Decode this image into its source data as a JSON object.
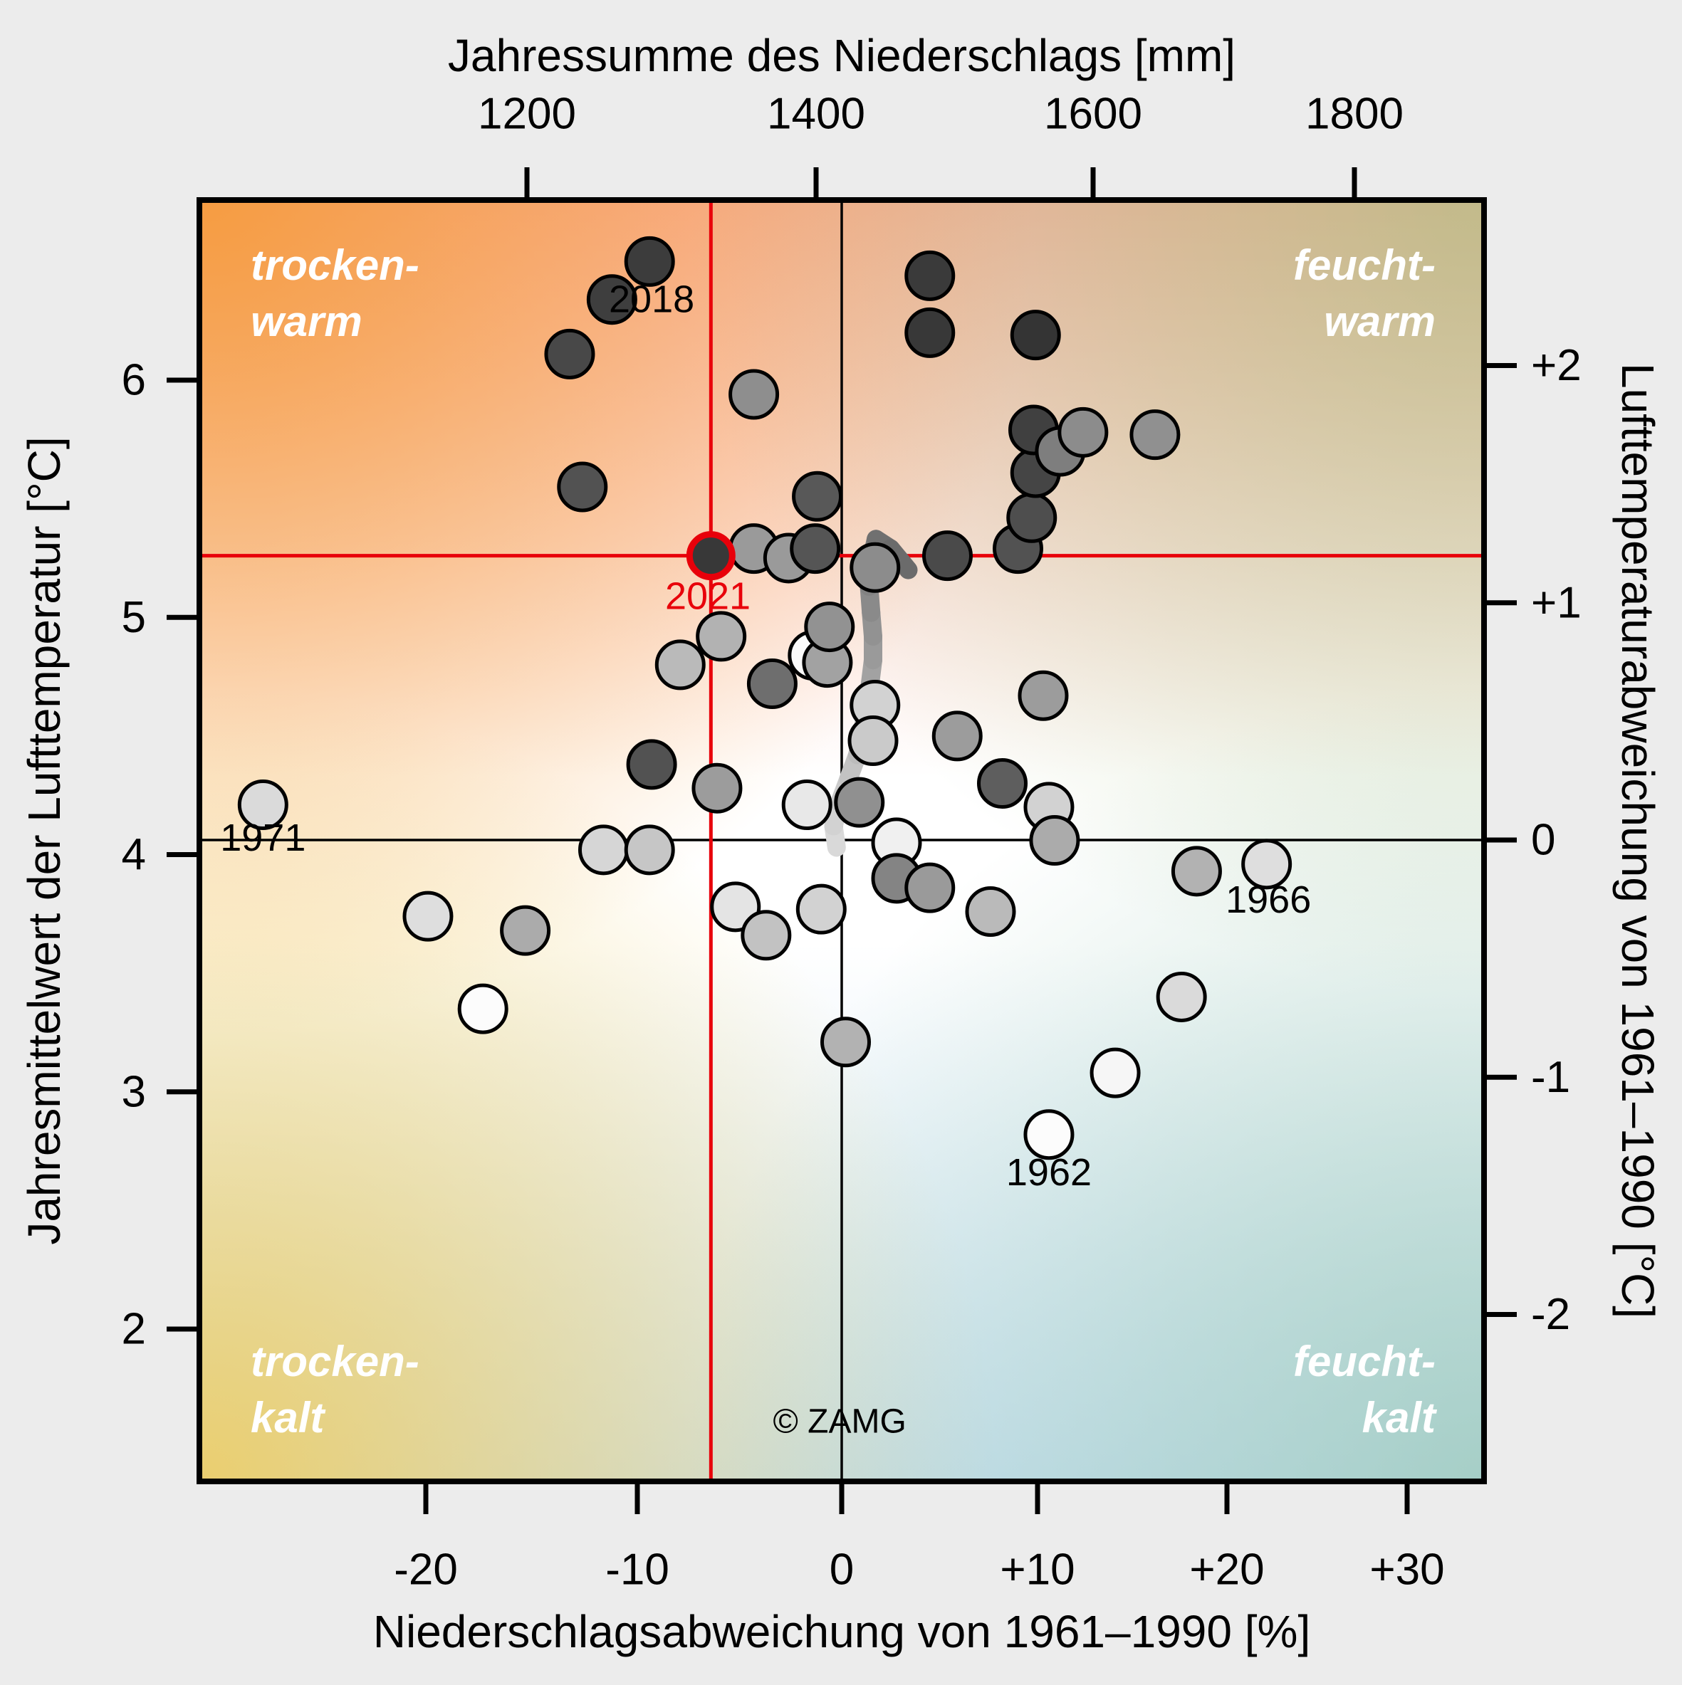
{
  "chart_data": {
    "type": "scatter",
    "axes": {
      "top": {
        "title": "Jahressumme des Niederschlags [mm]",
        "ticks": [
          {
            "value": 1200,
            "label": "1200"
          },
          {
            "value": 1400,
            "label": "1400"
          },
          {
            "value": 1600,
            "label": "1600"
          },
          {
            "value": 1800,
            "label": "1800"
          }
        ]
      },
      "bottom": {
        "title": "Niederschlagsabweichung von 1961–1990 [%]",
        "ticks": [
          {
            "value": -20,
            "label": "-20"
          },
          {
            "value": -10,
            "label": "-10"
          },
          {
            "value": 0,
            "label": "0"
          },
          {
            "value": 10,
            "label": "+10"
          },
          {
            "value": 20,
            "label": "+20"
          },
          {
            "value": 30,
            "label": "+30"
          }
        ]
      },
      "left": {
        "title": "Jahresmittelwert der Lufttemperatur [°C]",
        "ticks": [
          {
            "value": 6,
            "label": "6"
          },
          {
            "value": 5,
            "label": "5"
          },
          {
            "value": 4,
            "label": "4"
          },
          {
            "value": 3,
            "label": "3"
          },
          {
            "value": 2,
            "label": "2"
          }
        ]
      },
      "right": {
        "title": "Lufttemperaturabweichung von 1961–1990 [°C]",
        "ticks": [
          {
            "value": 2,
            "label": "+2"
          },
          {
            "value": 1,
            "label": "+1"
          },
          {
            "value": 0,
            "label": "0"
          },
          {
            "value": -1,
            "label": "-1"
          },
          {
            "value": -2,
            "label": "-2"
          }
        ]
      }
    },
    "xlabel": "Niederschlagsabweichung von 1961–1990 [%]",
    "ylabel": "Jahresmittelwert der Lufttemperatur [°C]",
    "xlim": [
      -31,
      32
    ],
    "ylim": [
      1.55,
      6.75
    ],
    "grid": false,
    "quadrant_labels": {
      "top_left": [
        "trocken-",
        "warm"
      ],
      "top_right": [
        "feucht-",
        "warm"
      ],
      "bottom_left": [
        "trocken-",
        "kalt"
      ],
      "bottom_right": [
        "feucht-",
        "kalt"
      ]
    },
    "highlight": {
      "year": "2021",
      "pct": -6.4,
      "temp": 5.26,
      "line_color": "#e8000a"
    },
    "zero_reference": {
      "pct": 0,
      "temp_at_zero_dev": 4.06,
      "line_color": "#000000"
    },
    "points": [
      {
        "pct": -9.4,
        "temp": 6.5,
        "shade": "#3c3c3c",
        "label": "2018"
      },
      {
        "pct": -11.2,
        "temp": 6.34,
        "shade": "#3e3e3e"
      },
      {
        "pct": -13.2,
        "temp": 6.11,
        "shade": "#484848"
      },
      {
        "pct": -4.3,
        "temp": 5.94,
        "shade": "#8e8e8e"
      },
      {
        "pct": -12.6,
        "temp": 5.55,
        "shade": "#525252"
      },
      {
        "pct": -1.2,
        "temp": 5.51,
        "shade": "#585858"
      },
      {
        "pct": -4.3,
        "temp": 5.29,
        "shade": "#9a9a9a"
      },
      {
        "pct": -2.6,
        "temp": 5.25,
        "shade": "#9a9a9a"
      },
      {
        "pct": -1.3,
        "temp": 5.29,
        "shade": "#555555"
      },
      {
        "pct": 1.7,
        "temp": 5.21,
        "shade": "#8c8c8c"
      },
      {
        "pct": 5.4,
        "temp": 5.26,
        "shade": "#4a4a4a"
      },
      {
        "pct": 9.0,
        "temp": 5.29,
        "shade": "#525252"
      },
      {
        "pct": 9.7,
        "temp": 5.42,
        "shade": "#4e4e4e"
      },
      {
        "pct": 9.9,
        "temp": 5.61,
        "shade": "#454545"
      },
      {
        "pct": 9.8,
        "temp": 5.79,
        "shade": "#404040"
      },
      {
        "pct": 11.2,
        "temp": 5.7,
        "shade": "#7e7e7e"
      },
      {
        "pct": 12.4,
        "temp": 5.78,
        "shade": "#8c8c8c"
      },
      {
        "pct": 16.2,
        "temp": 5.77,
        "shade": "#909090"
      },
      {
        "pct": 4.5,
        "temp": 6.44,
        "shade": "#3a3a3a"
      },
      {
        "pct": 4.5,
        "temp": 6.2,
        "shade": "#383838"
      },
      {
        "pct": 9.9,
        "temp": 6.19,
        "shade": "#343434"
      },
      {
        "pct": -5.9,
        "temp": 4.92,
        "shade": "#b2b2b2"
      },
      {
        "pct": -7.9,
        "temp": 4.8,
        "shade": "#bababa"
      },
      {
        "pct": -1.4,
        "temp": 4.84,
        "shade": "#fafafa"
      },
      {
        "pct": -0.7,
        "temp": 4.81,
        "shade": "#a2a2a2"
      },
      {
        "pct": -0.6,
        "temp": 4.96,
        "shade": "#929292"
      },
      {
        "pct": -3.4,
        "temp": 4.72,
        "shade": "#6e6e6e"
      },
      {
        "pct": 1.7,
        "temp": 4.63,
        "shade": "#d2d2d2"
      },
      {
        "pct": 1.6,
        "temp": 4.48,
        "shade": "#cacaca"
      },
      {
        "pct": 5.9,
        "temp": 4.5,
        "shade": "#9c9c9c"
      },
      {
        "pct": 10.3,
        "temp": 4.67,
        "shade": "#9c9c9c"
      },
      {
        "pct": -9.3,
        "temp": 4.38,
        "shade": "#525252"
      },
      {
        "pct": -6.1,
        "temp": 4.28,
        "shade": "#9c9c9c"
      },
      {
        "pct": -1.7,
        "temp": 4.21,
        "shade": "#e8e8e8"
      },
      {
        "pct": 0.9,
        "temp": 4.22,
        "shade": "#909090"
      },
      {
        "pct": -11.6,
        "temp": 4.02,
        "shade": "#d6d6d6"
      },
      {
        "pct": -9.4,
        "temp": 4.02,
        "shade": "#c6c6c6"
      },
      {
        "pct": -27.7,
        "temp": 4.21,
        "shade": "#dadada",
        "label": "1971"
      },
      {
        "pct": 2.8,
        "temp": 4.05,
        "shade": "#f0f0f0"
      },
      {
        "pct": 2.8,
        "temp": 3.9,
        "shade": "#848484"
      },
      {
        "pct": 4.5,
        "temp": 3.86,
        "shade": "#9a9a9a"
      },
      {
        "pct": 7.6,
        "temp": 3.76,
        "shade": "#bababa"
      },
      {
        "pct": 8.2,
        "temp": 4.3,
        "shade": "#5e5e5e"
      },
      {
        "pct": 10.6,
        "temp": 4.2,
        "shade": "#d2d2d2"
      },
      {
        "pct": 10.9,
        "temp": 4.06,
        "shade": "#ababab"
      },
      {
        "pct": -5.2,
        "temp": 3.78,
        "shade": "#e4e4e4"
      },
      {
        "pct": -3.7,
        "temp": 3.66,
        "shade": "#c2c2c2"
      },
      {
        "pct": -1.0,
        "temp": 3.77,
        "shade": "#d2d2d2"
      },
      {
        "pct": 0.2,
        "temp": 3.21,
        "shade": "#b2b2b2"
      },
      {
        "pct": -19.9,
        "temp": 3.74,
        "shade": "#dedede"
      },
      {
        "pct": -15.3,
        "temp": 3.68,
        "shade": "#ababab"
      },
      {
        "pct": -17.3,
        "temp": 3.35,
        "shade": "#fcfcfc"
      },
      {
        "pct": 18.4,
        "temp": 3.93,
        "shade": "#b2b2b2"
      },
      {
        "pct": 22.2,
        "temp": 3.96,
        "shade": "#dedede",
        "label": "1966"
      },
      {
        "pct": 17.6,
        "temp": 3.4,
        "shade": "#dadada"
      },
      {
        "pct": 14.1,
        "temp": 3.08,
        "shade": "#f6f6f6"
      },
      {
        "pct": 10.6,
        "temp": 2.82,
        "shade": "#fcfcfc",
        "label": "1962"
      }
    ],
    "highlight_point": {
      "pct": -6.4,
      "temp": 5.26,
      "shade": "#383838",
      "ring": "#e8000a"
    },
    "annotations": [
      {
        "text": "2018",
        "pct": -9.3,
        "temp": 6.34,
        "color": "#000000"
      },
      {
        "text": "2021",
        "pct": -6.55,
        "temp": 5.09,
        "color": "#e8000a"
      },
      {
        "text": "1971",
        "pct": -27.7,
        "temp": 4.07,
        "color": "#000000"
      },
      {
        "text": "1966",
        "pct": 22.3,
        "temp": 3.81,
        "color": "#000000"
      },
      {
        "text": "1962",
        "pct": 10.6,
        "temp": 2.66,
        "color": "#000000"
      }
    ],
    "copyright": {
      "text": "© ZAMG",
      "pct": -0.1,
      "temp": 1.61
    },
    "trend_line": [
      {
        "pct": -0.25,
        "temp": 4.03,
        "color": "#d9d9d9"
      },
      {
        "pct": -0.4,
        "temp": 4.12,
        "color": "#d2d2d2"
      },
      {
        "pct": -0.1,
        "temp": 4.22,
        "color": "#cbcbcb"
      },
      {
        "pct": 0.35,
        "temp": 4.32,
        "color": "#c3c3c3"
      },
      {
        "pct": 0.8,
        "temp": 4.42,
        "color": "#bbbbbb"
      },
      {
        "pct": 1.05,
        "temp": 4.52,
        "color": "#b2b2b2"
      },
      {
        "pct": 1.3,
        "temp": 4.62,
        "color": "#aaaaaa"
      },
      {
        "pct": 1.45,
        "temp": 4.72,
        "color": "#a2a2a2"
      },
      {
        "pct": 1.6,
        "temp": 4.82,
        "color": "#9a9a9a"
      },
      {
        "pct": 1.6,
        "temp": 4.92,
        "color": "#929292"
      },
      {
        "pct": 1.5,
        "temp": 5.02,
        "color": "#8a8a8a"
      },
      {
        "pct": 1.4,
        "temp": 5.13,
        "color": "#828282"
      },
      {
        "pct": 1.45,
        "temp": 5.22,
        "color": "#7a7a7a"
      },
      {
        "pct": 1.75,
        "temp": 5.33,
        "color": "#707070"
      },
      {
        "pct": 2.5,
        "temp": 5.29,
        "color": "#6b6b6b"
      },
      {
        "pct": 3.4,
        "temp": 5.2,
        "color": "#686868"
      }
    ],
    "colors": {
      "outer_background": "#ececec",
      "frame": "#000000",
      "highlight_red": "#e8000a",
      "quadrant_text": "#ffffff",
      "corner_top_left": "#f59830",
      "corner_bottom_left": "#eecc60",
      "corner_top_right": "#a5be7d",
      "corner_bottom_right": "#96c6b4",
      "band_top": "#f37658",
      "band_bottom": "#a8cfeb"
    }
  }
}
